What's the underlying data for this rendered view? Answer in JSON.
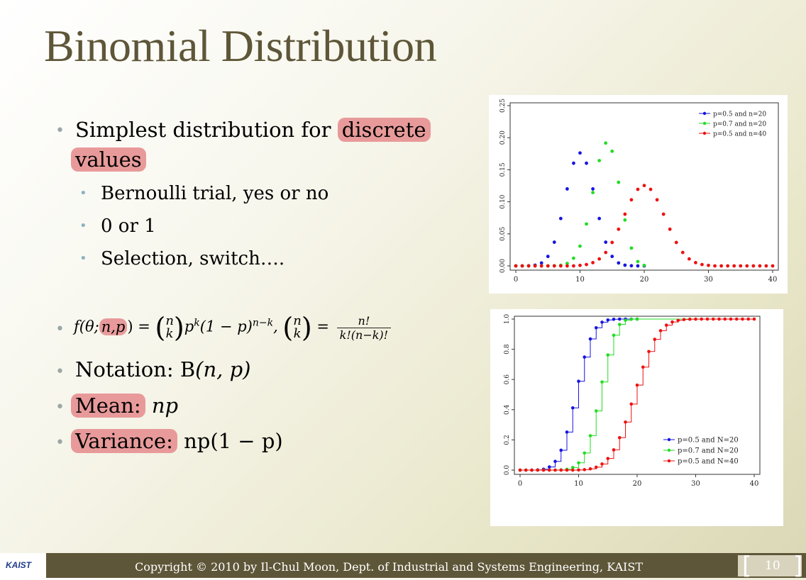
{
  "slide": {
    "title": "Binomial Distribution",
    "bullets": {
      "b1_text": "Simplest distribution for",
      "b1_highlight1": "discrete",
      "b1_highlight2": "values",
      "sub1": "Bernoulli trial, yes or no",
      "sub2": "0 or 1",
      "sub3": "Selection, switch….",
      "formula_lhs_start": "f(θ;",
      "formula_params": "n,p",
      "formula_lhs_end": ") =",
      "formula_binom_top": "n",
      "formula_binom_bottom": "k",
      "formula_body": "p^k(1 − p)^(n−k),",
      "formula_body_p": "p",
      "formula_body_k": "k",
      "formula_body_mid": "(1 − p)",
      "formula_body_nk": "n−k",
      "formula_equals": "=",
      "formula_frac_num": "n!",
      "formula_frac_den": "k!(n−k)!",
      "notation_label": "Notation: B",
      "notation_args": "(n, p)",
      "mean_label": "Mean:",
      "mean_value": "np",
      "variance_label": "Variance:",
      "variance_value": "np(1 − p)"
    },
    "footer": {
      "logo": "KAIST",
      "copyright": "Copyright © 2010 by Il-Chul Moon, Dept. of Industrial and Systems Engineering, KAIST",
      "page_number": "10"
    },
    "colors": {
      "title": "#5e5638",
      "highlight": "#e89a9a",
      "footer": "#5e5638",
      "blue": "#1515e0",
      "green": "#22dd22",
      "red": "#ee1111"
    }
  },
  "chart_data": [
    {
      "type": "scatter",
      "title": "",
      "xlabel": "",
      "ylabel": "",
      "xlim": [
        0,
        40
      ],
      "ylim": [
        0,
        0.25
      ],
      "xticks": [
        "0",
        "10",
        "20",
        "30",
        "40"
      ],
      "yticks": [
        "0.00",
        "0.05",
        "0.10",
        "0.15",
        "0.20",
        "0.25"
      ],
      "legend": "top-right",
      "series": [
        {
          "name": "p=0.5 and n=20",
          "color": "#1515e0",
          "x": [
            0,
            1,
            2,
            3,
            4,
            5,
            6,
            7,
            8,
            9,
            10,
            11,
            12,
            13,
            14,
            15,
            16,
            17,
            18,
            19,
            20
          ],
          "y": [
            0,
            0,
            0.0002,
            0.0011,
            0.0046,
            0.0148,
            0.037,
            0.0739,
            0.1201,
            0.1602,
            0.1762,
            0.1602,
            0.1201,
            0.0739,
            0.037,
            0.0148,
            0.0046,
            0.0011,
            0.0002,
            0,
            0
          ]
        },
        {
          "name": "p=0.7 and n=20",
          "color": "#22dd22",
          "x": [
            0,
            1,
            2,
            3,
            4,
            5,
            6,
            7,
            8,
            9,
            10,
            11,
            12,
            13,
            14,
            15,
            16,
            17,
            18,
            19,
            20
          ],
          "y": [
            0,
            0,
            0,
            0,
            0,
            0,
            0.0002,
            0.001,
            0.0039,
            0.012,
            0.0308,
            0.0654,
            0.1144,
            0.1643,
            0.1916,
            0.1789,
            0.1304,
            0.0716,
            0.0278,
            0.0068,
            0.0008
          ]
        },
        {
          "name": "p=0.5 and n=40",
          "color": "#ee1111",
          "x": [
            0,
            1,
            2,
            3,
            4,
            5,
            6,
            7,
            8,
            9,
            10,
            11,
            12,
            13,
            14,
            15,
            16,
            17,
            18,
            19,
            20,
            21,
            22,
            23,
            24,
            25,
            26,
            27,
            28,
            29,
            30,
            31,
            32,
            33,
            34,
            35,
            36,
            37,
            38,
            39,
            40
          ],
          "y": [
            0,
            0,
            0,
            0,
            0,
            0,
            0,
            0,
            0,
            0,
            0.0008,
            0.0021,
            0.0051,
            0.0109,
            0.021,
            0.0366,
            0.0572,
            0.0807,
            0.1031,
            0.1194,
            0.1254,
            0.1194,
            0.1031,
            0.0807,
            0.0572,
            0.0366,
            0.021,
            0.0109,
            0.0051,
            0.0021,
            0.0008,
            0,
            0,
            0,
            0,
            0,
            0,
            0,
            0,
            0,
            0
          ]
        }
      ]
    },
    {
      "type": "line",
      "title": "",
      "xlabel": "",
      "ylabel": "",
      "xlim": [
        0,
        40
      ],
      "ylim": [
        0,
        1.0
      ],
      "xticks": [
        "0",
        "10",
        "20",
        "30",
        "40"
      ],
      "yticks": [
        "0.0",
        "0.2",
        "0.4",
        "0.6",
        "0.8",
        "1.0"
      ],
      "legend": "bottom-right",
      "series": [
        {
          "name": "p=0.5 and N=20",
          "color": "#1515e0",
          "x": [
            0,
            1,
            2,
            3,
            4,
            5,
            6,
            7,
            8,
            9,
            10,
            11,
            12,
            13,
            14,
            15,
            16,
            17,
            18,
            19,
            20
          ],
          "y": [
            0,
            0,
            0.0002,
            0.0013,
            0.0059,
            0.0207,
            0.0577,
            0.1316,
            0.2517,
            0.4119,
            0.5881,
            0.7483,
            0.8684,
            0.9423,
            0.9793,
            0.9941,
            0.9987,
            0.9998,
            1,
            1,
            1
          ]
        },
        {
          "name": "p=0.7 and N=20",
          "color": "#22dd22",
          "x": [
            0,
            1,
            2,
            3,
            4,
            5,
            6,
            7,
            8,
            9,
            10,
            11,
            12,
            13,
            14,
            15,
            16,
            17,
            18,
            19,
            20
          ],
          "y": [
            0,
            0,
            0,
            0,
            0,
            0,
            0.0003,
            0.0013,
            0.0051,
            0.0171,
            0.048,
            0.1133,
            0.2277,
            0.392,
            0.5836,
            0.7625,
            0.8929,
            0.9645,
            0.9924,
            0.9992,
            1
          ]
        },
        {
          "name": "p=0.5 and N=40",
          "color": "#ee1111",
          "x": [
            0,
            1,
            2,
            3,
            4,
            5,
            6,
            7,
            8,
            9,
            10,
            11,
            12,
            13,
            14,
            15,
            16,
            17,
            18,
            19,
            20,
            21,
            22,
            23,
            24,
            25,
            26,
            27,
            28,
            29,
            30,
            31,
            32,
            33,
            34,
            35,
            36,
            37,
            38,
            39,
            40
          ],
          "y": [
            0,
            0,
            0,
            0,
            0,
            0,
            0,
            0,
            0,
            0,
            0.0011,
            0.0032,
            0.0083,
            0.0192,
            0.0403,
            0.0769,
            0.1341,
            0.2148,
            0.3179,
            0.4373,
            0.5627,
            0.6821,
            0.7852,
            0.8659,
            0.9231,
            0.9597,
            0.9808,
            0.9917,
            0.9968,
            0.9989,
            0.9997,
            1,
            1,
            1,
            1,
            1,
            1,
            1,
            1,
            1,
            1
          ]
        }
      ]
    }
  ]
}
